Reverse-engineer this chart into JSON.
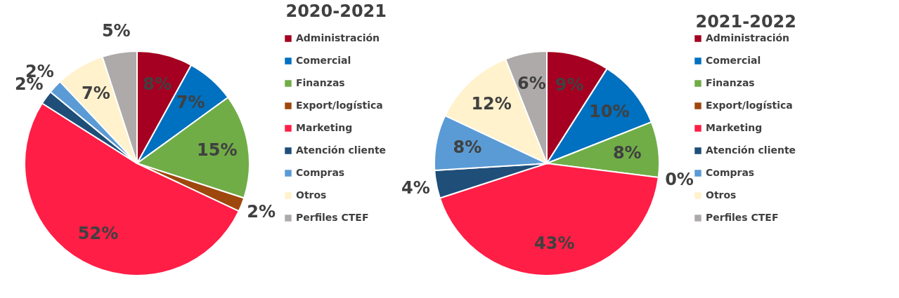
{
  "chart_data": [
    {
      "type": "pie",
      "title": "2020-2021",
      "categories": [
        "Administración",
        "Comercial",
        "Finanzas",
        "Export/logística",
        "Marketing",
        "Atención cliente",
        "Compras",
        "Otros",
        "Perfiles CTEF"
      ],
      "values": [
        8,
        7,
        15,
        2,
        52,
        2,
        2,
        7,
        5
      ],
      "value_labels": [
        "8%",
        "7%",
        "15%",
        "2%",
        "52%",
        "2%",
        "2%",
        "7%",
        "5%"
      ],
      "colors": [
        "#a50021",
        "#0070c0",
        "#70ad47",
        "#9e480e",
        "#ff1e46",
        "#1f4e79",
        "#5b9bd5",
        "#fff2cc",
        "#aeaaaa"
      ],
      "legend": "right"
    },
    {
      "type": "pie",
      "title": "2021-2022",
      "categories": [
        "Administración",
        "Comercial",
        "Finanzas",
        "Export/logística",
        "Marketing",
        "Atención cliente",
        "Compras",
        "Otros",
        "Perfiles CTEF"
      ],
      "values": [
        9,
        10,
        8,
        0,
        43,
        4,
        8,
        12,
        6
      ],
      "value_labels": [
        "9%",
        "10%",
        "8%",
        "0%",
        "43%",
        "4%",
        "8%",
        "12%",
        "6%"
      ],
      "colors": [
        "#a50021",
        "#0070c0",
        "#70ad47",
        "#9e480e",
        "#ff1e46",
        "#1f4e79",
        "#5b9bd5",
        "#fff2cc",
        "#aeaaaa"
      ],
      "legend": "right"
    }
  ]
}
